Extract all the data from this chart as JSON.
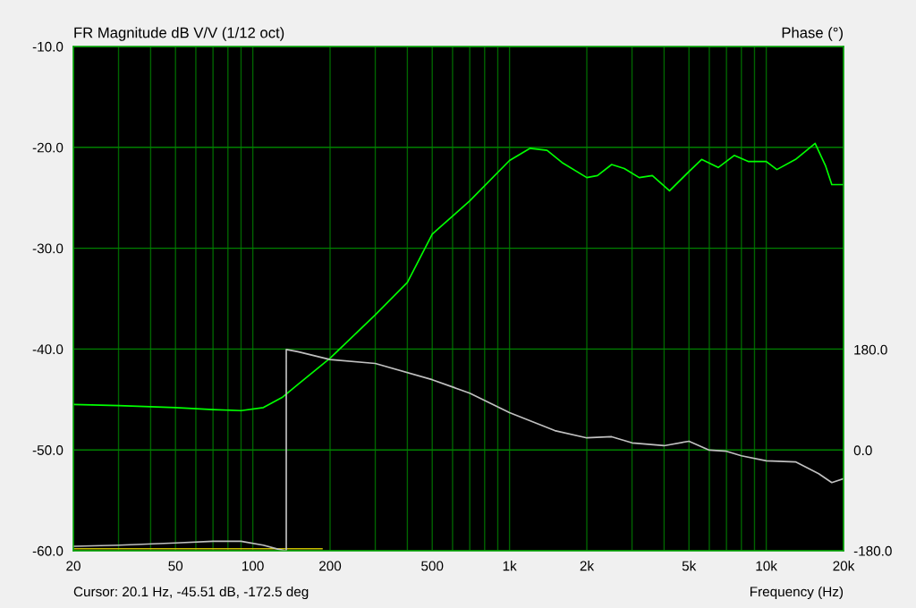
{
  "chart_data": {
    "type": "line",
    "ylabel": "FR Magnitude dB V/V (1/12 oct)",
    "y2label": "Phase (°)",
    "xlabel": "Frequency (Hz)",
    "annotations": [
      "Cursor: 20.1 Hz, -45.51 dB, -172.5 deg"
    ],
    "log": "x",
    "grid": true,
    "xlim": [
      20,
      20000
    ],
    "xticks": [
      20,
      {
        "value": 30,
        "label": null
      },
      {
        "value": 40,
        "label": null
      },
      50,
      {
        "value": 60,
        "label": null
      },
      {
        "value": 70,
        "label": null
      },
      {
        "value": 80,
        "label": null
      },
      {
        "value": 90,
        "label": null
      },
      100,
      200,
      {
        "value": 300,
        "label": null
      },
      {
        "value": 400,
        "label": null
      },
      500,
      {
        "value": 600,
        "label": null
      },
      {
        "value": 700,
        "label": null
      },
      {
        "value": 800,
        "label": null
      },
      {
        "value": 900,
        "label": null
      },
      {
        "value": 1000,
        "label": "1k"
      },
      {
        "value": 2000,
        "label": "2k"
      },
      {
        "value": 3000,
        "label": null
      },
      {
        "value": 4000,
        "label": null
      },
      {
        "value": 5000,
        "label": "5k"
      },
      {
        "value": 6000,
        "label": null
      },
      {
        "value": 7000,
        "label": null
      },
      {
        "value": 8000,
        "label": null
      },
      {
        "value": 9000,
        "label": null
      },
      {
        "value": 10000,
        "label": "10k"
      },
      {
        "value": 20000,
        "label": "20k"
      }
    ],
    "ylim": [
      -60,
      -10
    ],
    "yticks": [
      {
        "value": -60,
        "label": "-60.0"
      },
      {
        "value": -50,
        "label": "-50.0"
      },
      {
        "value": -40,
        "label": "-40.0"
      },
      {
        "value": -30,
        "label": "-30.0"
      },
      {
        "value": -20,
        "label": "-20.0"
      },
      {
        "value": -10,
        "label": "-10.0"
      }
    ],
    "y2lim": [
      -180,
      722
    ],
    "y2ticks": [
      {
        "value": -180,
        "label": "-180.0"
      },
      {
        "value": 0,
        "label": "0.0"
      },
      {
        "value": 180,
        "label": "180.0"
      }
    ],
    "series": [
      {
        "color": "#00ff00",
        "x": [
          20,
          30,
          50,
          70,
          90,
          110,
          130,
          150,
          200,
          300,
          400,
          500,
          700,
          1000,
          1200,
          1400,
          1600,
          2000,
          2200,
          2500,
          2800,
          3200,
          3600,
          4200,
          5000,
          5600,
          6500,
          7500,
          8500,
          10000,
          11000,
          13000,
          15500,
          17000,
          18000,
          20000
        ],
        "values": [
          -45.5,
          -45.6,
          -45.8,
          -46.0,
          -46.1,
          -45.8,
          -44.8,
          -43.5,
          -40.9,
          -36.6,
          -33.4,
          -28.6,
          -25.3,
          -21.3,
          -20.1,
          -20.3,
          -21.5,
          -23.0,
          -22.8,
          -21.7,
          -22.1,
          -23.0,
          -22.8,
          -24.3,
          -22.4,
          -21.2,
          -22.0,
          -20.8,
          -21.4,
          -21.4,
          -22.2,
          -21.2,
          -19.6,
          -21.8,
          -23.7,
          -23.7
        ]
      },
      {
        "color": "#c0c0c0",
        "axis": "y2",
        "x": [
          20,
          30,
          50,
          70,
          90,
          110,
          125,
          135,
          135,
          150,
          200,
          300,
          500,
          700,
          1000,
          1500,
          2000,
          2500,
          3000,
          4000,
          5000,
          6000,
          7000,
          8000,
          10000,
          13000,
          16000,
          18000,
          20000
        ],
        "values": [
          -172,
          -170,
          -166,
          -163,
          -163,
          -170,
          -177,
          -180,
          180,
          176,
          162,
          155,
          126,
          102,
          67,
          35,
          22,
          24,
          13,
          8,
          16,
          0,
          -2,
          -10,
          -19,
          -21,
          -42,
          -58,
          -51
        ]
      },
      {
        "color": "#c8c000",
        "x": [
          20,
          186
        ],
        "values": [
          -59.8,
          -59.8
        ]
      }
    ]
  }
}
